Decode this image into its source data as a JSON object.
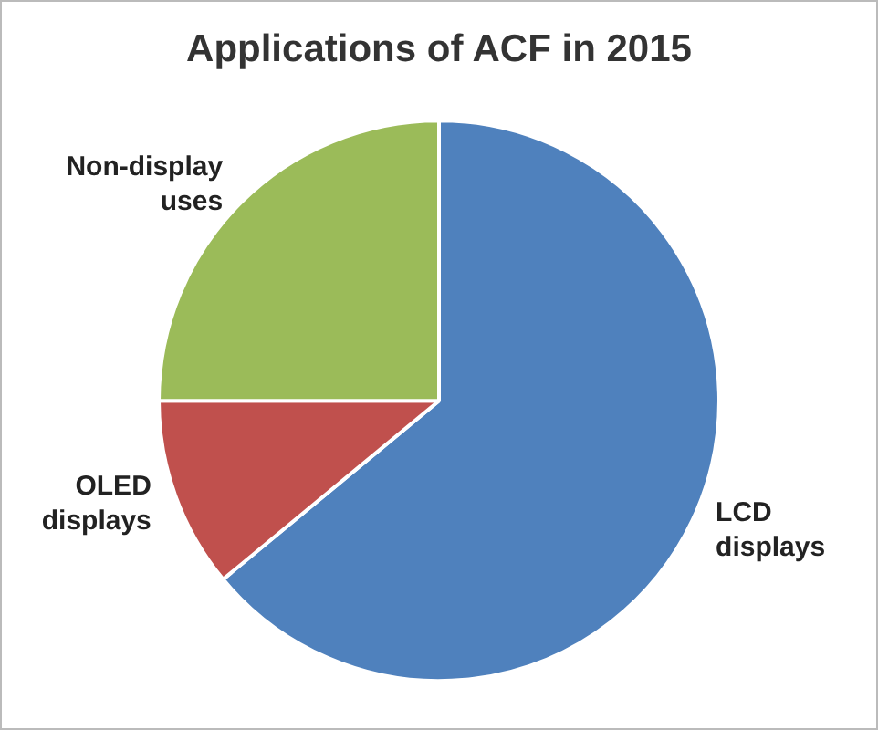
{
  "chart_data": {
    "type": "pie",
    "title": "Applications of ACF in 2015",
    "categories": [
      "LCD displays",
      "OLED displays",
      "Non-display uses"
    ],
    "values": [
      64,
      11,
      25
    ],
    "colors": [
      "#4f81bd",
      "#c0504d",
      "#9bbb59"
    ]
  }
}
